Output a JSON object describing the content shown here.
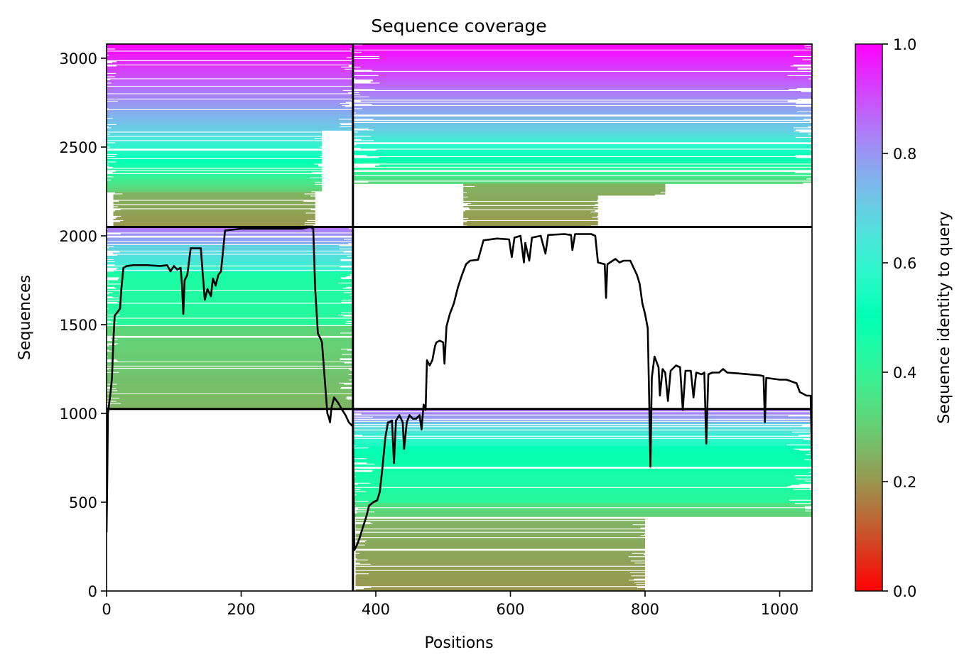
{
  "chart_data": {
    "type": "heatmap",
    "title": "Sequence coverage",
    "xlabel": "Positions",
    "ylabel": "Sequences",
    "xlim": [
      0,
      1048
    ],
    "ylim": [
      0,
      3080
    ],
    "xticks": [
      0,
      200,
      400,
      600,
      800,
      1000
    ],
    "yticks": [
      0,
      500,
      1000,
      1500,
      2000,
      2500,
      3000
    ],
    "grid": false,
    "colorbar": {
      "label": "Sequence identity to query",
      "colormap": "rainbow_r",
      "range": [
        0,
        1
      ],
      "ticks": [
        0.0,
        0.2,
        0.4,
        0.6,
        0.8,
        1.0
      ],
      "tick_labels": [
        "0.0",
        "0.2",
        "0.4",
        "0.6",
        "0.8",
        "1.0"
      ]
    },
    "chain_boundaries": {
      "x": [
        366
      ],
      "y": [
        1025,
        2050
      ]
    },
    "blocks": [
      {
        "rows": [
          2050,
          3080
        ],
        "cols": [
          0,
          366
        ],
        "bands": [
          [
            3080,
            2900,
            1.0,
            0.9
          ],
          [
            2900,
            2600,
            0.9,
            0.7
          ],
          [
            2600,
            2250,
            0.7,
            0.3
          ],
          [
            2250,
            2060,
            0.25,
            0.2
          ]
        ],
        "coverage": [
          [
            0,
            366,
            2600,
            3080
          ],
          [
            0,
            320,
            2250,
            2600
          ],
          [
            10,
            310,
            2060,
            2250
          ]
        ]
      },
      {
        "rows": [
          2050,
          3080
        ],
        "cols": [
          366,
          1048
        ],
        "bands": [
          [
            3080,
            2900,
            1.0,
            0.9
          ],
          [
            2900,
            2600,
            0.9,
            0.7
          ],
          [
            2600,
            2300,
            0.7,
            0.32
          ],
          [
            2300,
            2050,
            0.25,
            0.2
          ]
        ],
        "coverage": [
          [
            366,
            1048,
            2700,
            3080
          ],
          [
            366,
            1048,
            2300,
            2700
          ],
          [
            530,
            830,
            2230,
            2300
          ],
          [
            530,
            730,
            2050,
            2230
          ]
        ]
      },
      {
        "rows": [
          1025,
          2050
        ],
        "cols": [
          0,
          366
        ],
        "bands": [
          [
            2050,
            1950,
            0.85,
            0.75
          ],
          [
            1950,
            1800,
            0.7,
            0.6
          ],
          [
            1800,
            1500,
            0.45,
            0.42
          ],
          [
            1500,
            1025,
            0.32,
            0.25
          ]
        ],
        "coverage": [
          [
            0,
            366,
            1025,
            2050
          ]
        ]
      },
      {
        "rows": [
          0,
          1025
        ],
        "cols": [
          366,
          1048
        ],
        "bands": [
          [
            1025,
            950,
            0.85,
            0.75
          ],
          [
            950,
            820,
            0.7,
            0.55
          ],
          [
            820,
            500,
            0.5,
            0.42
          ],
          [
            500,
            420,
            0.35,
            0.3
          ],
          [
            420,
            0,
            0.25,
            0.2
          ]
        ],
        "coverage": [
          [
            366,
            1048,
            420,
            1025
          ],
          [
            370,
            800,
            0,
            420
          ]
        ]
      }
    ],
    "coverage_line": {
      "name": "",
      "color": "#000000",
      "points": [
        [
          0,
          330
        ],
        [
          1,
          600
        ],
        [
          2,
          1000
        ],
        [
          4,
          1060
        ],
        [
          6,
          1120
        ],
        [
          8,
          1200
        ],
        [
          10,
          1400
        ],
        [
          12,
          1550
        ],
        [
          16,
          1570
        ],
        [
          20,
          1590
        ],
        [
          22,
          1700
        ],
        [
          25,
          1820
        ],
        [
          30,
          1830
        ],
        [
          40,
          1835
        ],
        [
          60,
          1835
        ],
        [
          80,
          1830
        ],
        [
          90,
          1835
        ],
        [
          95,
          1800
        ],
        [
          100,
          1830
        ],
        [
          105,
          1810
        ],
        [
          110,
          1820
        ],
        [
          112,
          1730
        ],
        [
          114,
          1560
        ],
        [
          116,
          1750
        ],
        [
          120,
          1780
        ],
        [
          125,
          1930
        ],
        [
          140,
          1930
        ],
        [
          143,
          1780
        ],
        [
          146,
          1640
        ],
        [
          150,
          1700
        ],
        [
          155,
          1660
        ],
        [
          158,
          1760
        ],
        [
          162,
          1720
        ],
        [
          166,
          1780
        ],
        [
          170,
          1800
        ],
        [
          176,
          2030
        ],
        [
          200,
          2040
        ],
        [
          230,
          2040
        ],
        [
          260,
          2040
        ],
        [
          290,
          2040
        ],
        [
          303,
          2050
        ],
        [
          307,
          2040
        ],
        [
          310,
          1700
        ],
        [
          314,
          1450
        ],
        [
          318,
          1420
        ],
        [
          320,
          1400
        ],
        [
          322,
          1300
        ],
        [
          326,
          1100
        ],
        [
          328,
          1000
        ],
        [
          330,
          980
        ],
        [
          332,
          950
        ],
        [
          334,
          1030
        ],
        [
          338,
          1090
        ],
        [
          344,
          1060
        ],
        [
          350,
          1020
        ],
        [
          355,
          990
        ],
        [
          360,
          950
        ],
        [
          365,
          930
        ],
        [
          366,
          940
        ],
        [
          368,
          230
        ],
        [
          372,
          260
        ],
        [
          376,
          300
        ],
        [
          380,
          350
        ],
        [
          386,
          420
        ],
        [
          390,
          480
        ],
        [
          396,
          500
        ],
        [
          402,
          510
        ],
        [
          406,
          560
        ],
        [
          410,
          700
        ],
        [
          414,
          860
        ],
        [
          418,
          950
        ],
        [
          420,
          950
        ],
        [
          424,
          960
        ],
        [
          427,
          720
        ],
        [
          430,
          960
        ],
        [
          435,
          990
        ],
        [
          440,
          950
        ],
        [
          442,
          800
        ],
        [
          446,
          950
        ],
        [
          450,
          990
        ],
        [
          455,
          970
        ],
        [
          460,
          970
        ],
        [
          465,
          990
        ],
        [
          468,
          910
        ],
        [
          471,
          1050
        ],
        [
          474,
          1020
        ],
        [
          476,
          1300
        ],
        [
          480,
          1270
        ],
        [
          484,
          1300
        ],
        [
          488,
          1380
        ],
        [
          490,
          1400
        ],
        [
          495,
          1410
        ],
        [
          500,
          1400
        ],
        [
          502,
          1280
        ],
        [
          505,
          1490
        ],
        [
          510,
          1560
        ],
        [
          516,
          1620
        ],
        [
          522,
          1710
        ],
        [
          528,
          1780
        ],
        [
          534,
          1840
        ],
        [
          540,
          1860
        ],
        [
          552,
          1865
        ],
        [
          556,
          1920
        ],
        [
          560,
          1975
        ],
        [
          580,
          1985
        ],
        [
          598,
          1980
        ],
        [
          602,
          1880
        ],
        [
          606,
          1990
        ],
        [
          615,
          2000
        ],
        [
          620,
          1850
        ],
        [
          622,
          1960
        ],
        [
          628,
          1860
        ],
        [
          632,
          1990
        ],
        [
          645,
          2000
        ],
        [
          652,
          1900
        ],
        [
          656,
          2005
        ],
        [
          680,
          2010
        ],
        [
          690,
          2005
        ],
        [
          692,
          1920
        ],
        [
          696,
          2010
        ],
        [
          720,
          2010
        ],
        [
          726,
          2000
        ],
        [
          730,
          1850
        ],
        [
          740,
          1840
        ],
        [
          742,
          1650
        ],
        [
          744,
          1840
        ],
        [
          756,
          1870
        ],
        [
          762,
          1850
        ],
        [
          768,
          1860
        ],
        [
          778,
          1860
        ],
        [
          788,
          1780
        ],
        [
          792,
          1730
        ],
        [
          796,
          1620
        ],
        [
          800,
          1560
        ],
        [
          804,
          1480
        ],
        [
          806,
          1100
        ],
        [
          808,
          700
        ],
        [
          810,
          1200
        ],
        [
          814,
          1320
        ],
        [
          820,
          1260
        ],
        [
          822,
          1100
        ],
        [
          826,
          1250
        ],
        [
          830,
          1230
        ],
        [
          834,
          1070
        ],
        [
          838,
          1240
        ],
        [
          846,
          1270
        ],
        [
          852,
          1260
        ],
        [
          856,
          1020
        ],
        [
          860,
          1240
        ],
        [
          868,
          1240
        ],
        [
          872,
          1090
        ],
        [
          876,
          1230
        ],
        [
          884,
          1220
        ],
        [
          888,
          1230
        ],
        [
          891,
          830
        ],
        [
          894,
          1220
        ],
        [
          900,
          1230
        ],
        [
          910,
          1230
        ],
        [
          916,
          1250
        ],
        [
          922,
          1230
        ],
        [
          940,
          1225
        ],
        [
          970,
          1215
        ],
        [
          976,
          1210
        ],
        [
          978,
          950
        ],
        [
          980,
          1200
        ],
        [
          1000,
          1190
        ],
        [
          1010,
          1190
        ],
        [
          1025,
          1170
        ],
        [
          1030,
          1120
        ],
        [
          1040,
          1100
        ],
        [
          1046,
          1100
        ],
        [
          1048,
          740
        ]
      ]
    }
  }
}
